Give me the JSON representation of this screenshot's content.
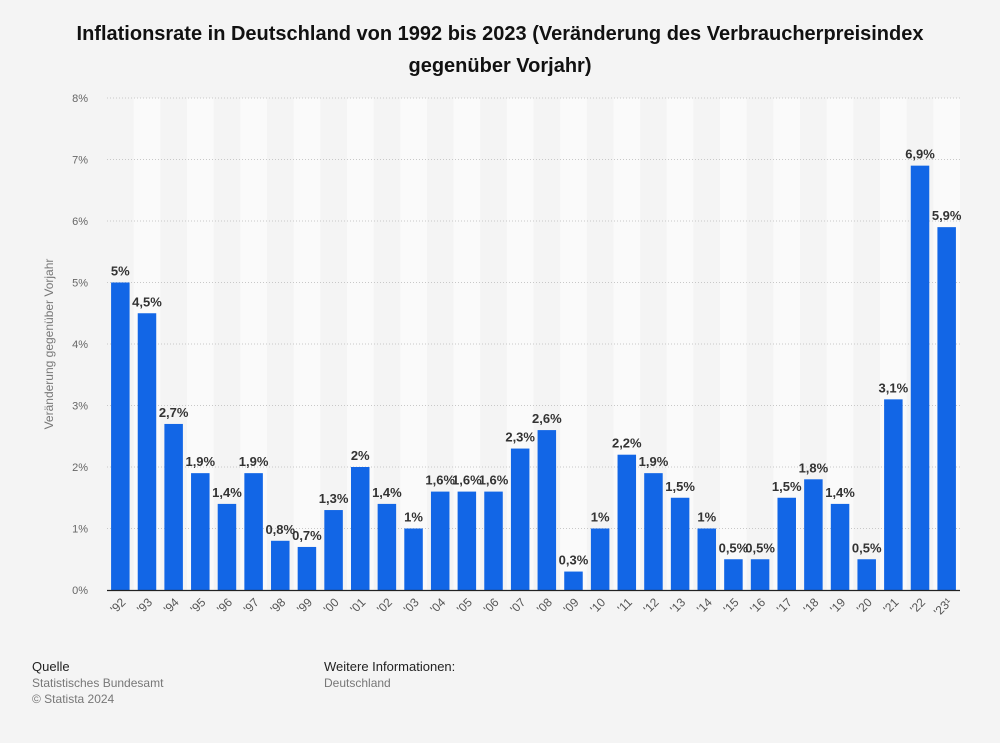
{
  "title": "Inflationsrate in Deutschland von 1992 bis 2023 (Veränderung des Verbraucherpreisindex gegenüber Vorjahr)",
  "chart_data": {
    "type": "bar",
    "categories": [
      "'92",
      "'93",
      "'94",
      "'95",
      "'96",
      "'97",
      "'98",
      "'99",
      "'00",
      "'01",
      "'02",
      "'03",
      "'04",
      "'05",
      "'06",
      "'07",
      "'08",
      "'09",
      "'10",
      "'11",
      "'12",
      "'13",
      "'14",
      "'15",
      "'16",
      "'17",
      "'18",
      "'19",
      "'20",
      "'21",
      "'22",
      "'23¹"
    ],
    "values": [
      5,
      4.5,
      2.7,
      1.9,
      1.4,
      1.9,
      0.8,
      0.7,
      1.3,
      2,
      1.4,
      1,
      1.6,
      1.6,
      1.6,
      2.3,
      2.6,
      0.3,
      1,
      2.2,
      1.9,
      1.5,
      1,
      0.5,
      0.5,
      1.5,
      1.8,
      1.4,
      0.5,
      3.1,
      6.9,
      5.9
    ],
    "value_labels": [
      "5%",
      "4,5%",
      "2,7%",
      "1,9%",
      "1,4%",
      "1,9%",
      "0,8%",
      "0,7%",
      "1,3%",
      "2%",
      "1,4%",
      "1%",
      "1,6%",
      "1,6%",
      "1,6%",
      "2,3%",
      "2,6%",
      "0,3%",
      "1%",
      "2,2%",
      "1,9%",
      "1,5%",
      "1%",
      "0,5%",
      "0,5%",
      "1,5%",
      "1,8%",
      "1,4%",
      "0,5%",
      "3,1%",
      "6,9%",
      "5,9%"
    ],
    "ylabel": "Veränderung gegenüber Vorjahr",
    "ylim": [
      0,
      8
    ],
    "y_ticks": [
      0,
      1,
      2,
      3,
      4,
      5,
      6,
      7,
      8
    ],
    "y_tick_labels": [
      "0%",
      "1%",
      "2%",
      "3%",
      "4%",
      "5%",
      "6%",
      "7%",
      "8%"
    ],
    "bar_color": "#1266e6",
    "grid": true
  },
  "footer": {
    "source_heading": "Quelle",
    "source_name": "Statistisches Bundesamt",
    "copyright": "© Statista 2024",
    "info_heading": "Weitere Informationen:",
    "info_region": "Deutschland"
  }
}
